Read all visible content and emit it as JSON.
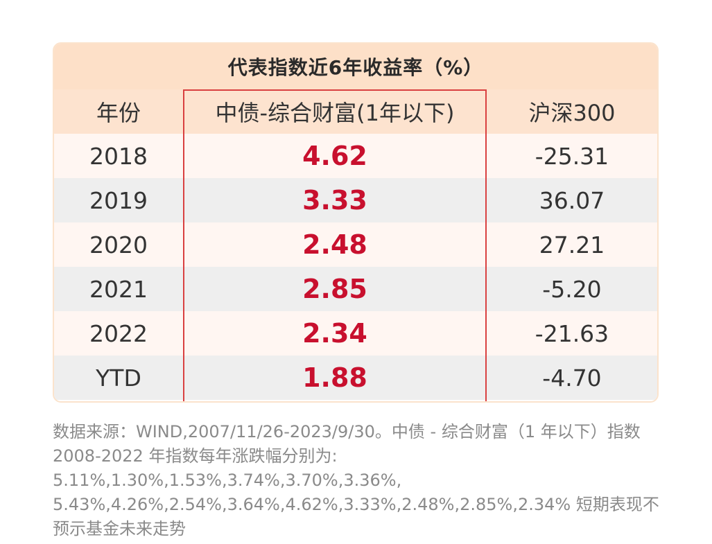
{
  "chart_data": {
    "type": "table",
    "title": "代表指数近6年收益率（%）",
    "columns": [
      "年份",
      "中债-综合财富(1年以下)",
      "沪深300"
    ],
    "rows": [
      {
        "year": "2018",
        "bond": "4.62",
        "csi300": "-25.31"
      },
      {
        "year": "2019",
        "bond": "3.33",
        "csi300": "36.07"
      },
      {
        "year": "2020",
        "bond": "2.48",
        "csi300": "27.21"
      },
      {
        "year": "2021",
        "bond": "2.85",
        "csi300": "-5.20"
      },
      {
        "year": "2022",
        "bond": "2.34",
        "csi300": "-21.63"
      },
      {
        "year": "YTD",
        "bond": "1.88",
        "csi300": "-4.70"
      }
    ]
  },
  "colors": {
    "header_bg": "#fde0c8",
    "highlight_border": "#d94040",
    "value_red": "#c8102e",
    "row_alt": "#eeeeee",
    "row_light": "#fff6f2"
  },
  "footnote": "数据来源：WIND,2007/11/26-2023/9/30。中债 - 综合财富（1 年以下）指数 2008-2022 年指数每年涨跌幅分别为: 5.11%,1.30%,1.53%,3.74%,3.70%,3.36%, 5.43%,4.26%,2.54%,3.64%,4.62%,3.33%,2.48%,2.85%,2.34% 短期表现不预示基金未来走势"
}
